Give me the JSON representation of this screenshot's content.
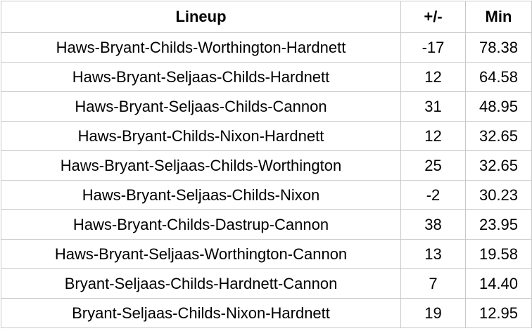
{
  "table": {
    "header": [
      "Lineup",
      "+/-",
      "Min"
    ],
    "rows": [
      [
        "Haws-Bryant-Childs-Worthington-Hardnett",
        "-17",
        "78.38"
      ],
      [
        "Haws-Bryant-Seljaas-Childs-Hardnett",
        "12",
        "64.58"
      ],
      [
        "Haws-Bryant-Seljaas-Childs-Cannon",
        "31",
        "48.95"
      ],
      [
        "Haws-Bryant-Childs-Nixon-Hardnett",
        "12",
        "32.65"
      ],
      [
        "Haws-Bryant-Seljaas-Childs-Worthington",
        "25",
        "32.65"
      ],
      [
        "Haws-Bryant-Seljaas-Childs-Nixon",
        "-2",
        "30.23"
      ],
      [
        "Haws-Bryant-Childs-Dastrup-Cannon",
        "38",
        "23.95"
      ],
      [
        "Haws-Bryant-Seljaas-Worthington-Cannon",
        "13",
        "19.58"
      ],
      [
        "Bryant-Seljaas-Childs-Hardnett-Cannon",
        "7",
        "14.40"
      ],
      [
        "Bryant-Seljaas-Childs-Nixon-Hardnett",
        "19",
        "12.95"
      ]
    ]
  }
}
